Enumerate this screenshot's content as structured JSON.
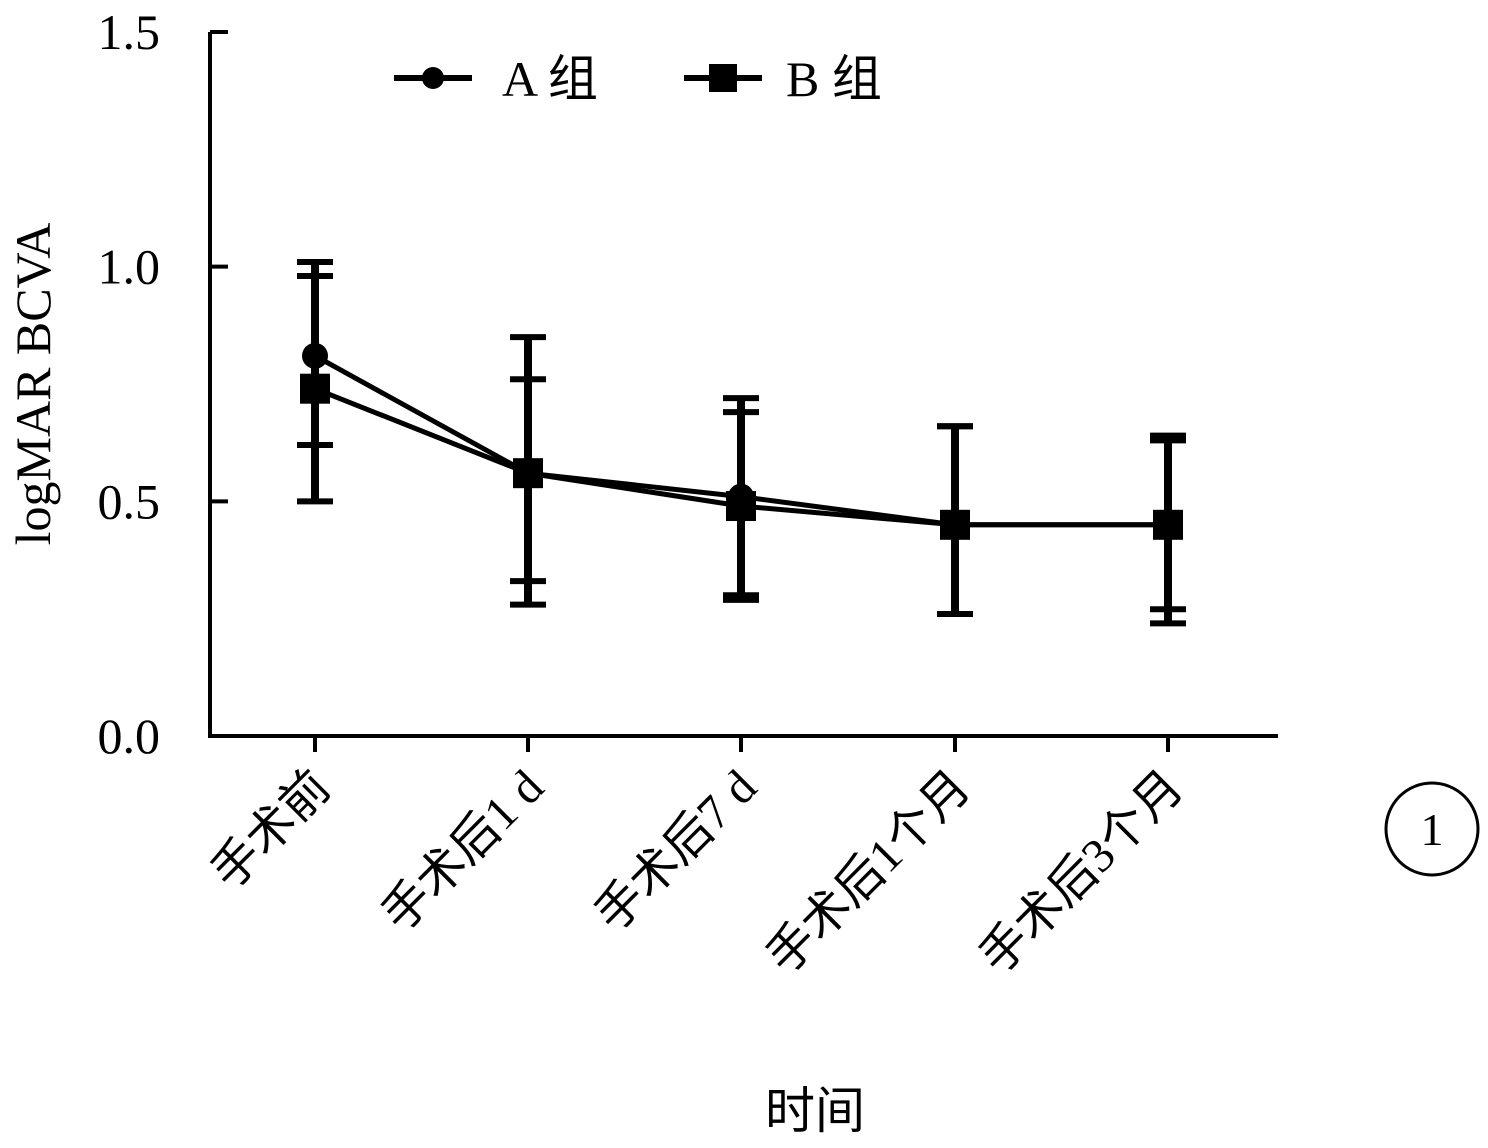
{
  "chart_data": {
    "type": "line",
    "title": "",
    "xlabel": "时间",
    "ylabel": "logMAR BCVA",
    "ylim": [
      0,
      1.5
    ],
    "yticks": [
      "0.0",
      "0.5",
      "1.0",
      "1.5"
    ],
    "ytick_values": [
      0,
      0.5,
      1.0,
      1.5
    ],
    "categories": [
      "手术前",
      "手术后1 d",
      "手术后7 d",
      "手术后1个月",
      "手术后3个月"
    ],
    "legend_position": "top",
    "grid": false,
    "series": [
      {
        "name": "A 组",
        "marker": "circle",
        "values": [
          0.81,
          0.56,
          0.51,
          0.45,
          0.45
        ],
        "error_low": [
          0.62,
          0.33,
          0.3,
          0.26,
          0.27
        ],
        "error_high": [
          1.01,
          0.76,
          0.72,
          0.66,
          0.63
        ]
      },
      {
        "name": "B 组",
        "marker": "square",
        "values": [
          0.74,
          0.56,
          0.49,
          0.45,
          0.45
        ],
        "error_low": [
          0.5,
          0.28,
          0.29,
          0.26,
          0.24
        ],
        "error_high": [
          0.98,
          0.85,
          0.69,
          0.66,
          0.64
        ]
      }
    ],
    "color": "#000000"
  },
  "panel_label": "1"
}
